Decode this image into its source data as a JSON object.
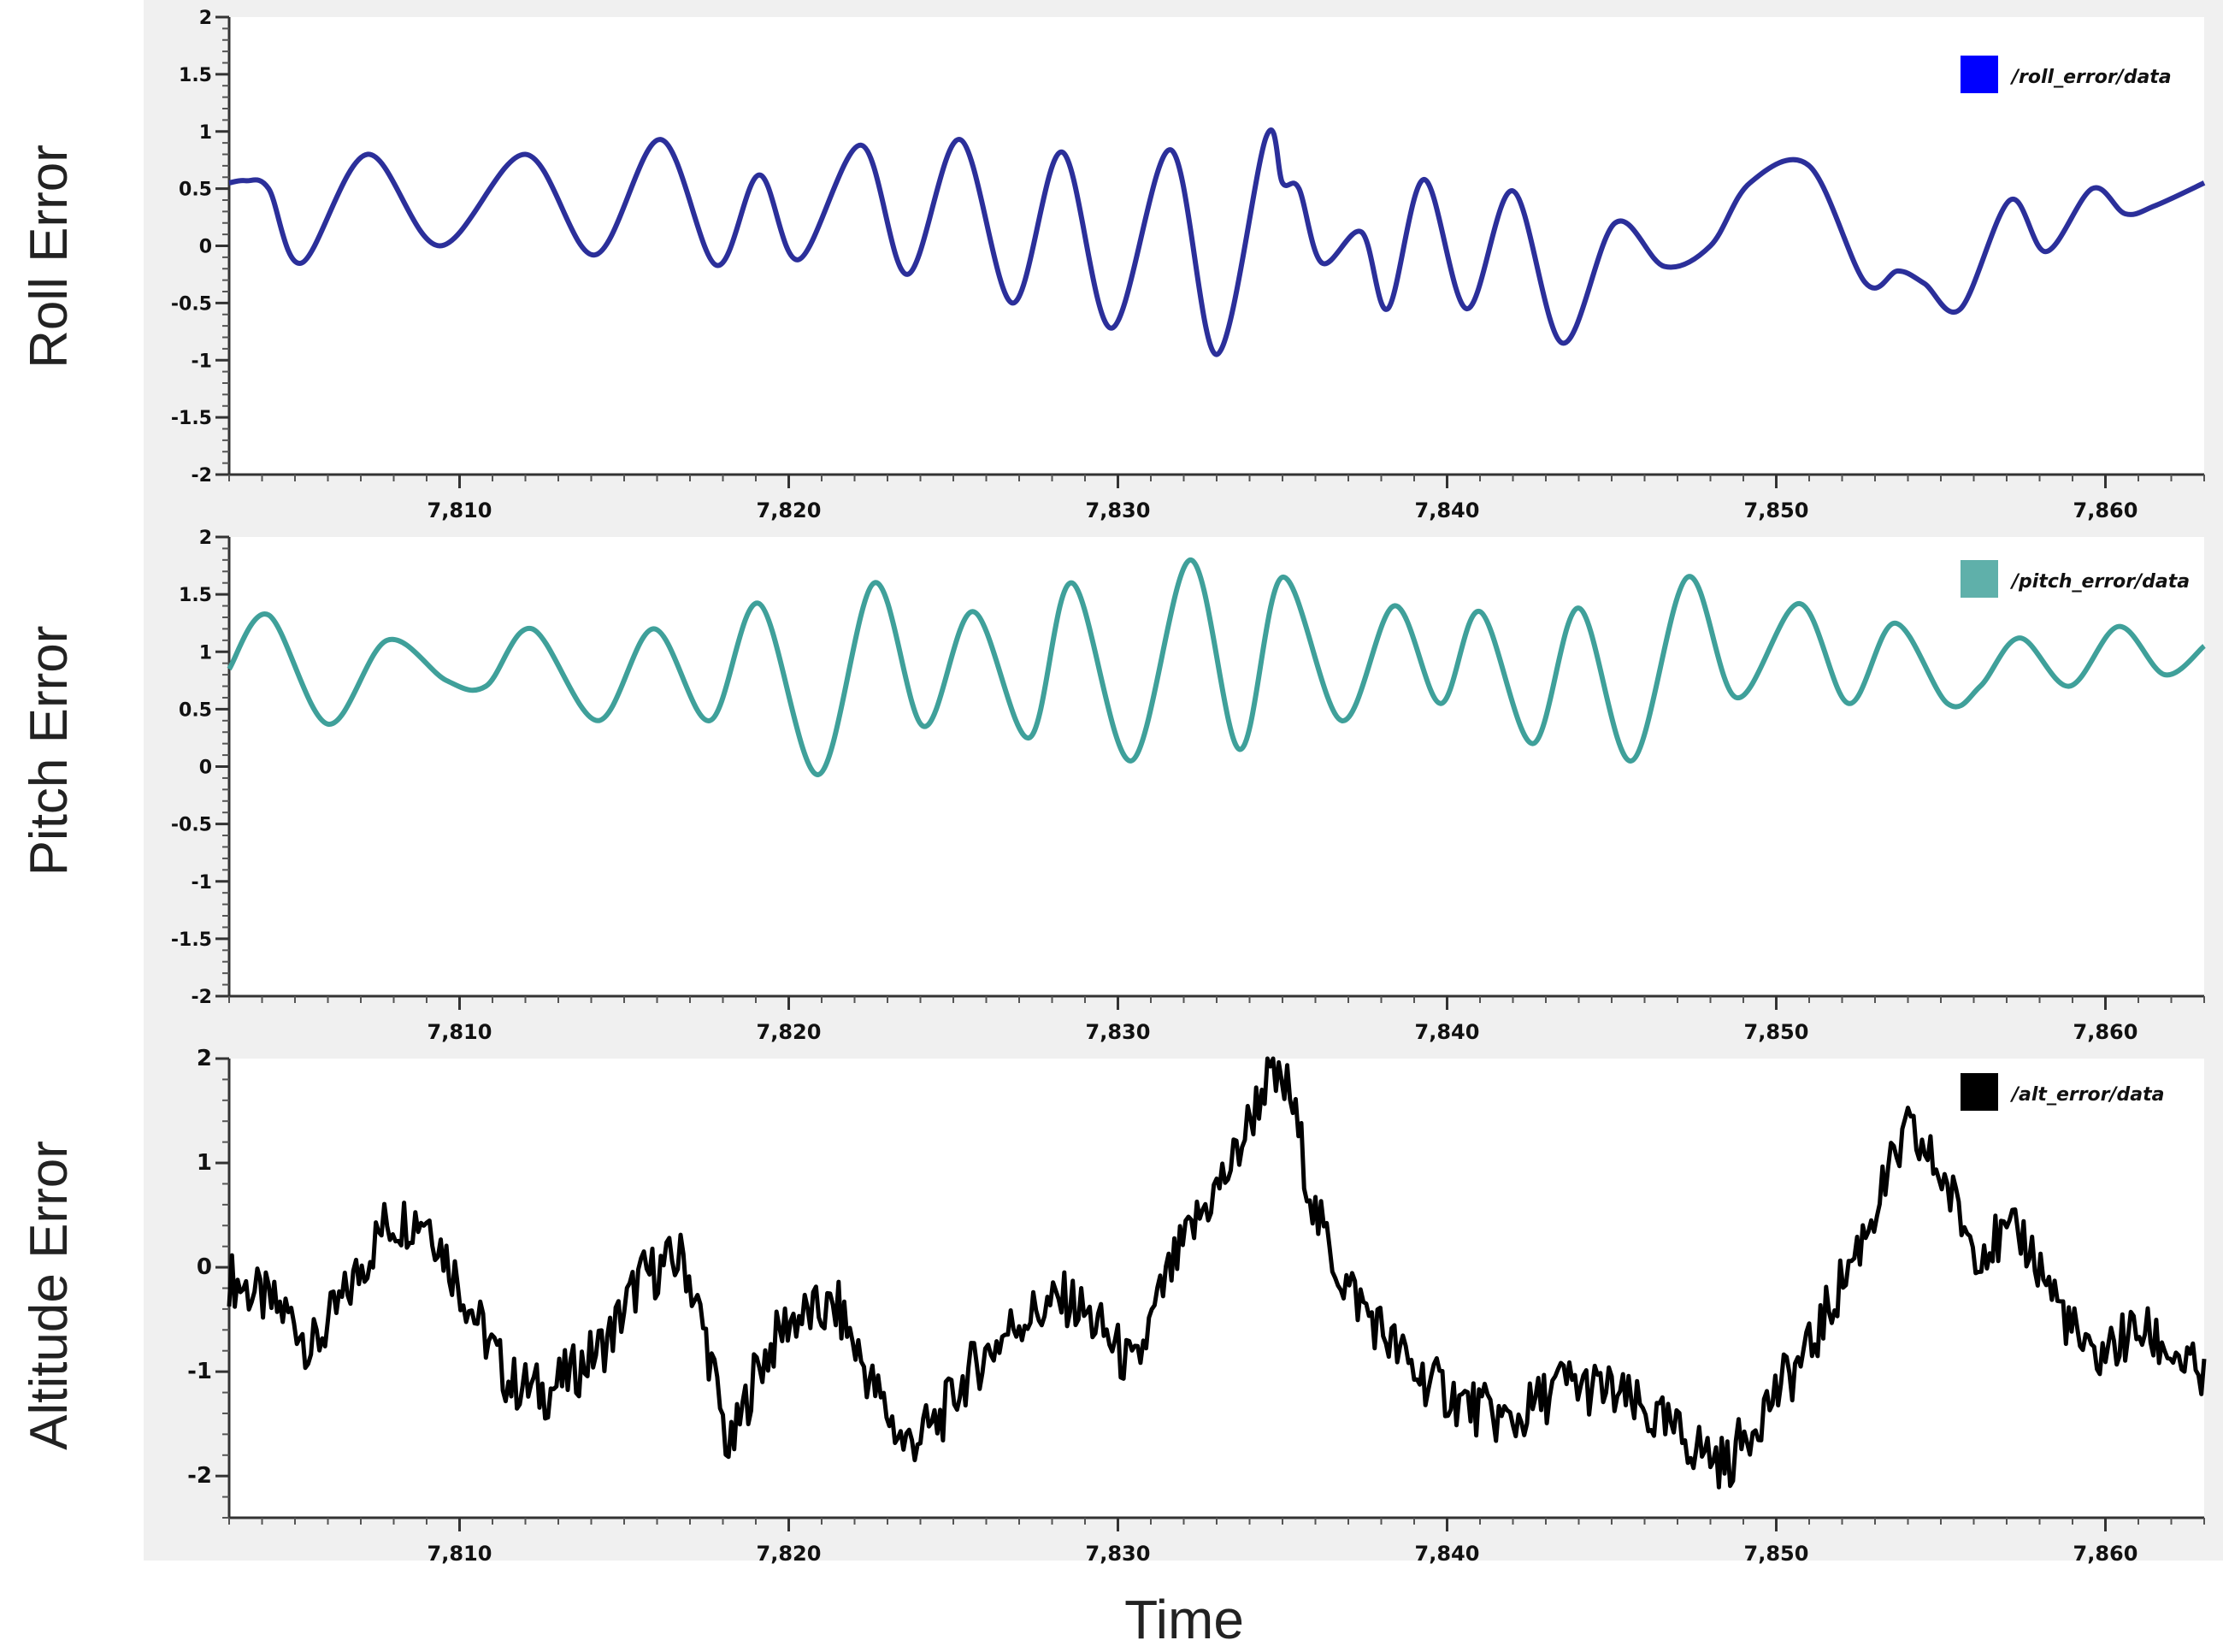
{
  "xlabel": "Time",
  "chart_data": [
    {
      "type": "line",
      "ylabel": "Roll Error",
      "xlim": [
        7803,
        7863
      ],
      "ylim": [
        -2,
        2
      ],
      "yticks": [
        -2,
        -1.5,
        -1,
        -0.5,
        0,
        0.5,
        1,
        1.5,
        2
      ],
      "ytick_labels": [
        "-2",
        "-1.5",
        "-1",
        "-0.5",
        "0",
        "0.5",
        "1",
        "1.5",
        "2"
      ],
      "xticks": [
        7810,
        7820,
        7830,
        7840,
        7850,
        7860
      ],
      "xtick_labels": [
        "7,810",
        "7,820",
        "7,830",
        "7,840",
        "7,850",
        "7,860"
      ],
      "series": [
        {
          "name": "/roll_error/data",
          "color": "#2b2f9a",
          "legend_color": "#0000ff",
          "x": [
            7803.0,
            7803.5,
            7804.2,
            7805.2,
            7807.2,
            7809.4,
            7812.0,
            7814.1,
            7816.1,
            7817.8,
            7819.1,
            7820.3,
            7822.2,
            7823.6,
            7825.2,
            7826.8,
            7828.3,
            7829.8,
            7831.6,
            7833.0,
            7834.5,
            7835.0,
            7835.5,
            7836.2,
            7837.4,
            7838.2,
            7839.3,
            7840.6,
            7842.0,
            7843.5,
            7845.1,
            7846.6,
            7848.0,
            7849.2,
            7851.0,
            7852.7,
            7853.7,
            7854.5,
            7855.6,
            7857.1,
            7858.2,
            7859.6,
            7860.6,
            7861.5,
            7863.0
          ],
          "y": [
            0.55,
            0.57,
            0.5,
            -0.15,
            0.8,
            0.0,
            0.8,
            -0.08,
            0.93,
            -0.17,
            0.62,
            -0.12,
            0.88,
            -0.25,
            0.93,
            -0.5,
            0.82,
            -0.72,
            0.84,
            -0.95,
            0.95,
            0.55,
            0.5,
            -0.15,
            0.12,
            -0.55,
            0.58,
            -0.55,
            0.48,
            -0.85,
            0.2,
            -0.18,
            0.0,
            0.55,
            0.7,
            -0.32,
            -0.22,
            -0.33,
            -0.55,
            0.4,
            -0.05,
            0.5,
            0.28,
            0.35,
            0.55
          ]
        }
      ]
    },
    {
      "type": "line",
      "ylabel": "Pitch Error",
      "xlim": [
        7803,
        7863
      ],
      "ylim": [
        -2,
        2
      ],
      "yticks": [
        -2,
        -1.5,
        -1,
        -0.5,
        0,
        0.5,
        1,
        1.5,
        2
      ],
      "ytick_labels": [
        "-2",
        "-1.5",
        "-1",
        "-0.5",
        "0",
        "0.5",
        "1",
        "1.5",
        "2"
      ],
      "xticks": [
        7810,
        7820,
        7830,
        7840,
        7850,
        7860
      ],
      "xtick_labels": [
        "7,810",
        "7,820",
        "7,830",
        "7,840",
        "7,850",
        "7,860"
      ],
      "series": [
        {
          "name": "/pitch_error/data",
          "color": "#3fa09a",
          "legend_color": "#5fb0aa",
          "x": [
            7803.0,
            7804.2,
            7806.0,
            7807.8,
            7809.6,
            7810.8,
            7812.2,
            7814.2,
            7815.9,
            7817.6,
            7819.1,
            7820.9,
            7822.6,
            7824.1,
            7825.6,
            7827.3,
            7828.6,
            7830.4,
            7832.2,
            7833.7,
            7835.0,
            7836.8,
            7838.4,
            7839.8,
            7841.0,
            7842.6,
            7844.0,
            7845.6,
            7847.3,
            7848.8,
            7850.7,
            7852.2,
            7853.6,
            7855.2,
            7856.2,
            7857.4,
            7858.9,
            7860.4,
            7861.8,
            7863.0
          ],
          "y": [
            0.85,
            1.32,
            0.37,
            1.1,
            0.75,
            0.7,
            1.2,
            0.4,
            1.2,
            0.4,
            1.42,
            -0.07,
            1.6,
            0.35,
            1.35,
            0.25,
            1.6,
            0.05,
            1.8,
            0.15,
            1.65,
            0.4,
            1.4,
            0.55,
            1.35,
            0.2,
            1.38,
            0.05,
            1.65,
            0.6,
            1.42,
            0.55,
            1.25,
            0.55,
            0.7,
            1.12,
            0.7,
            1.22,
            0.8,
            1.05
          ]
        }
      ]
    },
    {
      "type": "line",
      "ylabel": "Altitude  Error",
      "xlim": [
        7803,
        7863
      ],
      "ylim": [
        -2.4,
        2
      ],
      "yticks": [
        -2,
        -1,
        0,
        1,
        2
      ],
      "ytick_labels": [
        "-2",
        "-1",
        "0",
        "1",
        "2"
      ],
      "xticks": [
        7810,
        7820,
        7830,
        7840,
        7850,
        7860
      ],
      "xtick_labels": [
        "7,810",
        "7,820",
        "7,830",
        "7,840",
        "7,850",
        "7,860"
      ],
      "series": [
        {
          "name": "/alt_error/data",
          "color": "#000000",
          "legend_color": "#000000",
          "x": [
            7803.0,
            7804.0,
            7805.0,
            7805.5,
            7806.5,
            7807.7,
            7809.0,
            7810.2,
            7811.5,
            7812.6,
            7813.5,
            7814.5,
            7815.5,
            7816.8,
            7817.5,
            7818.2,
            7819.0,
            7820.0,
            7821.5,
            7822.5,
            7823.5,
            7824.5,
            7825.5,
            7827.0,
            7828.5,
            7829.5,
            7830.5,
            7831.5,
            7832.5,
            7833.5,
            7834.5,
            7835.2,
            7836.0,
            7836.8,
            7838.0,
            7839.0,
            7840.5,
            7842.0,
            7843.5,
            7845.0,
            7846.5,
            7847.5,
            7848.5,
            7849.5,
            7851.0,
            7852.5,
            7854.0,
            7855.0,
            7856.0,
            7857.5,
            7858.5,
            7859.5,
            7861.0,
            7862.0,
            7863.0
          ],
          "y": [
            -0.1,
            -0.3,
            -0.5,
            -0.8,
            -0.3,
            0.4,
            0.5,
            -0.3,
            -1.1,
            -1.2,
            -1.0,
            -0.7,
            -0.1,
            0.1,
            -0.7,
            -1.8,
            -1.0,
            -0.5,
            -0.4,
            -1.1,
            -1.7,
            -1.5,
            -1.0,
            -0.5,
            -0.3,
            -0.6,
            -1.0,
            -0.1,
            0.5,
            1.0,
            1.8,
            1.7,
            0.5,
            -0.1,
            -0.6,
            -1.0,
            -1.3,
            -1.5,
            -1.1,
            -1.2,
            -1.5,
            -1.7,
            -1.9,
            -1.4,
            -0.8,
            0.2,
            1.3,
            0.9,
            0.2,
            0.3,
            -0.3,
            -0.9,
            -0.6,
            -0.8,
            -1.1
          ]
        }
      ]
    }
  ]
}
